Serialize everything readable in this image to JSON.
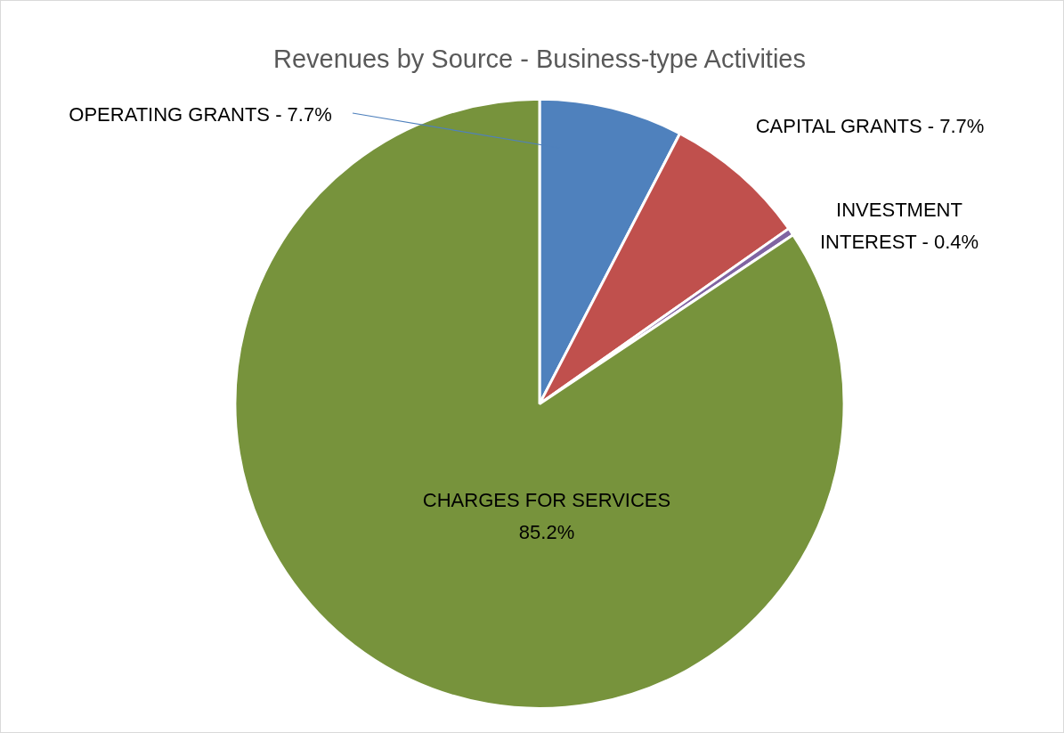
{
  "chart_data": {
    "type": "pie",
    "title": "Revenues by Source - Business-type Activities",
    "categories": [
      "OPERATING GRANTS",
      "CAPITAL GRANTS",
      "INVESTMENT INTEREST",
      "CHARGES FOR SERVICES"
    ],
    "values": [
      7.7,
      7.7,
      0.4,
      85.2
    ],
    "colors": [
      "#4f81bd",
      "#c0504d",
      "#8064a2",
      "#77933c"
    ],
    "value_labels": [
      "7.7%",
      "7.7%",
      "0.4%",
      "85.2%"
    ],
    "legend": false
  }
}
